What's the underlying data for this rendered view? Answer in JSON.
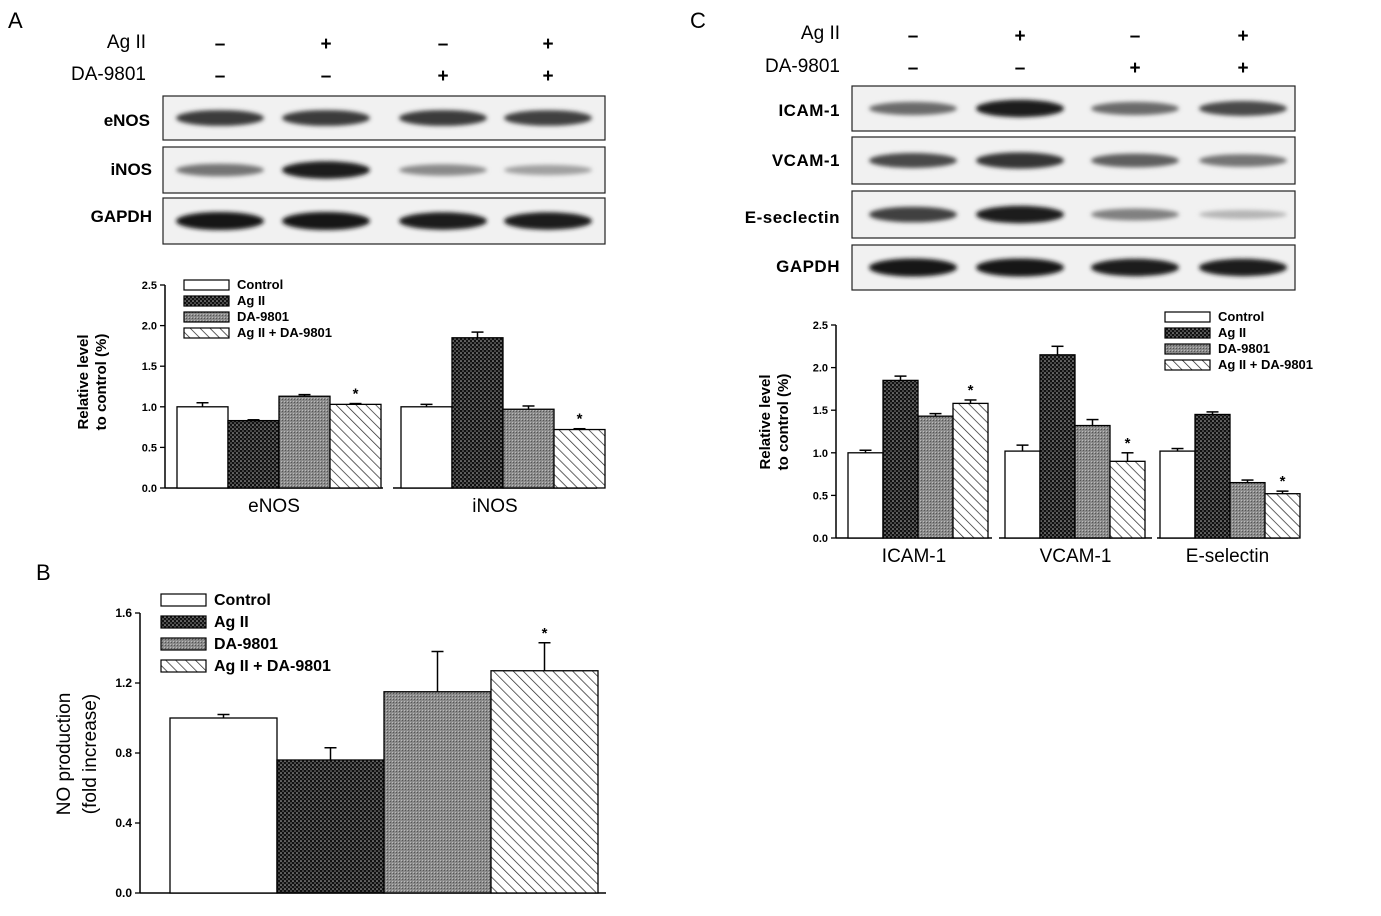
{
  "panels": {
    "A": {
      "letter": "A",
      "treatment_rows": [
        {
          "label": "Ag II",
          "signs": [
            "–",
            "+",
            "–",
            "+"
          ]
        },
        {
          "label": "DA-9801",
          "signs": [
            "–",
            "–",
            "+",
            "+"
          ]
        }
      ],
      "blots": [
        {
          "label": "eNOS",
          "band_intensity": [
            0.82,
            0.82,
            0.82,
            0.8
          ]
        },
        {
          "label": "iNOS",
          "band_intensity": [
            0.55,
            0.95,
            0.45,
            0.35
          ]
        },
        {
          "label": "GAPDH",
          "band_intensity": [
            1.0,
            1.0,
            0.95,
            0.95
          ]
        }
      ]
    },
    "B": {
      "letter": "B"
    },
    "C": {
      "letter": "C",
      "treatment_rows": [
        {
          "label": "Ag II",
          "signs": [
            "–",
            "+",
            "–",
            "+"
          ]
        },
        {
          "label": "DA-9801",
          "signs": [
            "–",
            "–",
            "+",
            "+"
          ]
        }
      ],
      "blots": [
        {
          "label": "ICAM-1",
          "band_intensity": [
            0.6,
            0.95,
            0.6,
            0.75
          ]
        },
        {
          "label": "VCAM-1",
          "band_intensity": [
            0.75,
            0.85,
            0.65,
            0.55
          ]
        },
        {
          "label": "E-seclectin",
          "band_intensity": [
            0.8,
            0.95,
            0.5,
            0.25
          ]
        },
        {
          "label": "GAPDH",
          "band_intensity": [
            1.0,
            1.0,
            0.95,
            0.95
          ]
        }
      ]
    }
  },
  "legend_series": [
    {
      "name": "Control",
      "pattern": "white"
    },
    {
      "name": "Ag II",
      "pattern": "dots"
    },
    {
      "name": "DA-9801",
      "pattern": "grey"
    },
    {
      "name": "Ag II + DA-9801",
      "pattern": "hatch"
    }
  ],
  "chart_data": [
    {
      "panel": "A",
      "type": "bar",
      "ylabel": [
        "Relative level",
        "to control (%)"
      ],
      "ylim": [
        0,
        2.5
      ],
      "yticks": [
        "0.0",
        "0.5",
        "1.0",
        "1.5",
        "2.0",
        "2.5"
      ],
      "groups": [
        "eNOS",
        "iNOS"
      ],
      "series": [
        {
          "name": "Control",
          "values": [
            1.0,
            1.0
          ],
          "errors": [
            0.05,
            0.03
          ]
        },
        {
          "name": "Ag II",
          "values": [
            0.83,
            1.85
          ],
          "errors": [
            0.01,
            0.07
          ]
        },
        {
          "name": "DA-9801",
          "values": [
            1.13,
            0.97
          ],
          "errors": [
            0.02,
            0.04
          ]
        },
        {
          "name": "Ag II + DA-9801",
          "values": [
            1.03,
            0.72
          ],
          "errors": [
            0.01,
            0.01
          ]
        }
      ],
      "significance": [
        {
          "group": 0,
          "series": 3,
          "mark": "*"
        },
        {
          "group": 1,
          "series": 3,
          "mark": "*"
        }
      ],
      "legend": "top-left"
    },
    {
      "panel": "B",
      "type": "bar",
      "ylabel": [
        "NO production",
        "(fold increase)"
      ],
      "ylim": [
        0,
        1.6
      ],
      "yticks": [
        "0.0",
        "0.4",
        "0.8",
        "1.2",
        "1.6"
      ],
      "groups": [
        ""
      ],
      "series": [
        {
          "name": "Control",
          "values": [
            1.0
          ],
          "errors": [
            0.02
          ]
        },
        {
          "name": "Ag II",
          "values": [
            0.76
          ],
          "errors": [
            0.07
          ]
        },
        {
          "name": "DA-9801",
          "values": [
            1.15
          ],
          "errors": [
            0.23
          ]
        },
        {
          "name": "Ag II + DA-9801",
          "values": [
            1.27
          ],
          "errors": [
            0.16
          ]
        }
      ],
      "significance": [
        {
          "group": 0,
          "series": 3,
          "mark": "*"
        }
      ],
      "legend": "top-left"
    },
    {
      "panel": "C",
      "type": "bar",
      "ylabel": [
        "Relative level",
        "to control (%)"
      ],
      "ylim": [
        0,
        2.5
      ],
      "yticks": [
        "0.0",
        "0.5",
        "1.0",
        "1.5",
        "2.0",
        "2.5"
      ],
      "groups": [
        "ICAM-1",
        "VCAM-1",
        "E-selectin"
      ],
      "series": [
        {
          "name": "Control",
          "values": [
            1.0,
            1.02,
            1.02
          ],
          "errors": [
            0.03,
            0.07,
            0.03
          ]
        },
        {
          "name": "Ag II",
          "values": [
            1.85,
            2.15,
            1.45
          ],
          "errors": [
            0.05,
            0.1,
            0.03
          ]
        },
        {
          "name": "DA-9801",
          "values": [
            1.43,
            1.32,
            0.65
          ],
          "errors": [
            0.03,
            0.07,
            0.03
          ]
        },
        {
          "name": "Ag II + DA-9801",
          "values": [
            1.58,
            0.9,
            0.52
          ],
          "errors": [
            0.04,
            0.1,
            0.03
          ]
        }
      ],
      "significance": [
        {
          "group": 0,
          "series": 3,
          "mark": "*"
        },
        {
          "group": 1,
          "series": 3,
          "mark": "*"
        },
        {
          "group": 2,
          "series": 3,
          "mark": "*"
        }
      ],
      "legend": "top-right"
    }
  ]
}
